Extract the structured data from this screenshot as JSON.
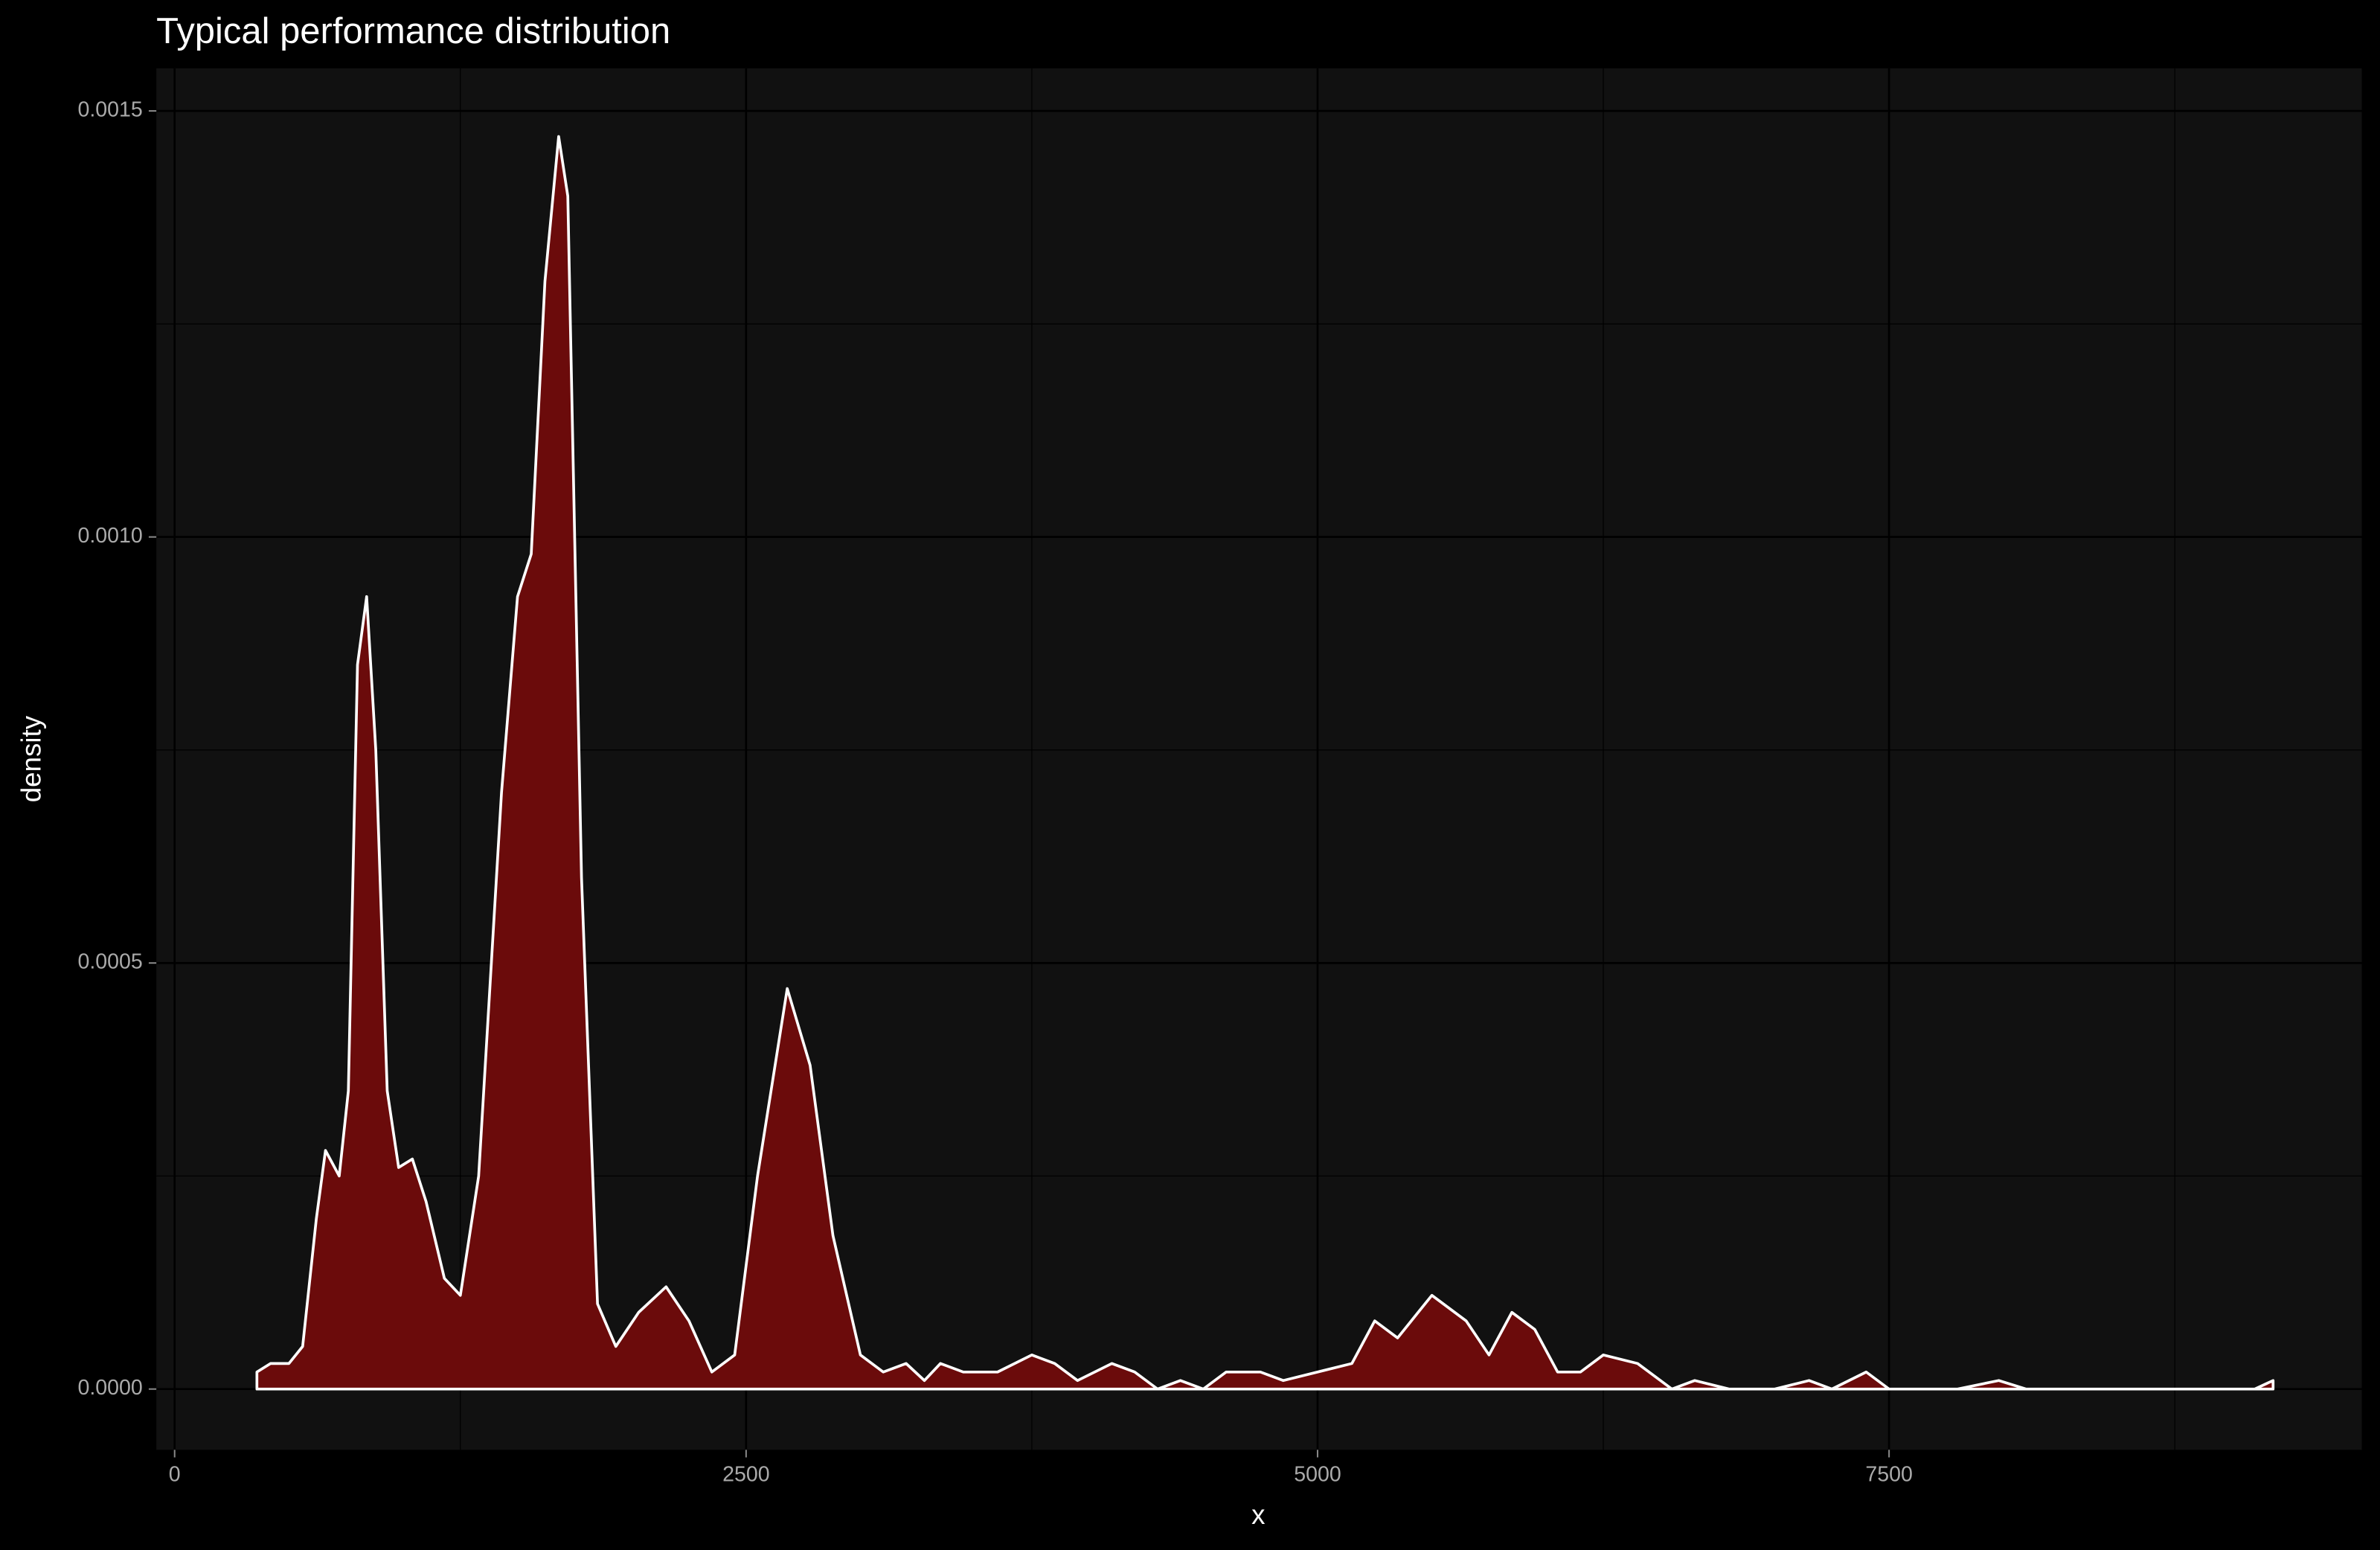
{
  "chart_data": {
    "type": "area",
    "title": "Typical performance distribution",
    "x_label": "x",
    "y_label": "density",
    "x": [
      360,
      420,
      500,
      560,
      620,
      660,
      720,
      760,
      800,
      840,
      880,
      930,
      980,
      1040,
      1100,
      1180,
      1250,
      1330,
      1430,
      1500,
      1560,
      1620,
      1680,
      1720,
      1780,
      1850,
      1930,
      2030,
      2150,
      2250,
      2350,
      2450,
      2550,
      2680,
      2780,
      2880,
      3000,
      3100,
      3200,
      3280,
      3350,
      3450,
      3600,
      3750,
      3850,
      3950,
      4100,
      4200,
      4300,
      4400,
      4500,
      4600,
      4750,
      4850,
      5000,
      5150,
      5250,
      5350,
      5500,
      5650,
      5750,
      5850,
      5950,
      6050,
      6150,
      6250,
      6400,
      6550,
      6650,
      6800,
      7000,
      7150,
      7250,
      7400,
      7500,
      7800,
      7980,
      8100,
      9100,
      9180
    ],
    "values": [
      2e-05,
      3e-05,
      3e-05,
      5e-05,
      0.0002,
      0.00028,
      0.00025,
      0.00035,
      0.00085,
      0.00093,
      0.00075,
      0.00035,
      0.00026,
      0.00027,
      0.00022,
      0.00013,
      0.00011,
      0.00025,
      0.0007,
      0.00093,
      0.00098,
      0.0013,
      0.00147,
      0.0014,
      0.0006,
      0.0001,
      5e-05,
      9e-05,
      0.00012,
      8e-05,
      2e-05,
      4e-05,
      0.00025,
      0.00047,
      0.00038,
      0.00018,
      4e-05,
      2e-05,
      3e-05,
      1e-05,
      3e-05,
      2e-05,
      2e-05,
      4e-05,
      3e-05,
      1e-05,
      3e-05,
      2e-05,
      0,
      1e-05,
      0,
      2e-05,
      2e-05,
      1e-05,
      2e-05,
      3e-05,
      8e-05,
      6e-05,
      0.00011,
      8e-05,
      4e-05,
      9e-05,
      7e-05,
      2e-05,
      2e-05,
      4e-05,
      3e-05,
      0,
      1e-05,
      0,
      0,
      1e-05,
      0,
      2e-05,
      0,
      0,
      1e-05,
      0,
      0,
      1e-05
    ],
    "fill": "#6b0b0b",
    "line_color": "#ffffff",
    "xlim": [
      -80,
      9568
    ],
    "ylim": [
      -7.13e-05,
      0.00155
    ],
    "xticks": [
      0,
      2500,
      5000,
      7500
    ],
    "x_minor_grid": [
      1250,
      3750,
      6250,
      8750
    ],
    "yticks": [
      {
        "value": 0,
        "label": "0.0000"
      },
      {
        "value": 0.0005,
        "label": "0.0005"
      },
      {
        "value": 0.001,
        "label": "0.0010"
      },
      {
        "value": 0.0015,
        "label": "0.0015"
      }
    ],
    "y_minor_grid": [
      0.00025,
      0.00075,
      0.00125
    ],
    "grid": true
  }
}
